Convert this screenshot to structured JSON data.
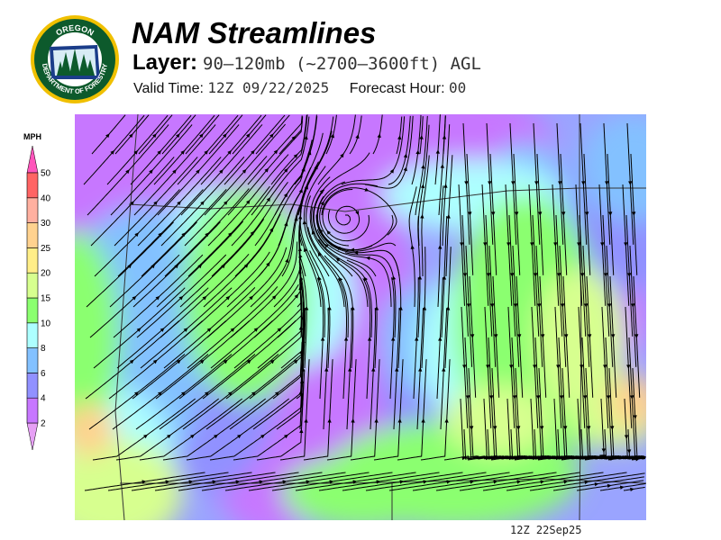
{
  "logo": {
    "text_top": "OREGON",
    "text_bottom": "DEPARTMENT OF FORESTRY"
  },
  "header": {
    "title": "NAM Streamlines",
    "layer_label": "Layer:",
    "layer_value": "90–120mb (~2700–3600ft) AGL",
    "valid_label": "Valid Time:",
    "valid_value": "12Z 09/22/2025",
    "forecast_label": "Forecast Hour:",
    "forecast_value": "00"
  },
  "legend": {
    "unit": "MPH",
    "ticks": [
      "2",
      "4",
      "6",
      "8",
      "10",
      "15",
      "20",
      "25",
      "30",
      "40",
      "50"
    ],
    "colors": [
      "#c777ff",
      "#9191ff",
      "#83c1ff",
      "#adffff",
      "#8bff6f",
      "#d7ff8f",
      "#ffee88",
      "#ffd28f",
      "#ffb0a0",
      "#ff6464"
    ],
    "under_color": "#e6a0f5",
    "over_color": "#ff55bb"
  },
  "footer": {
    "stamp": "12Z 22Sep25"
  }
}
